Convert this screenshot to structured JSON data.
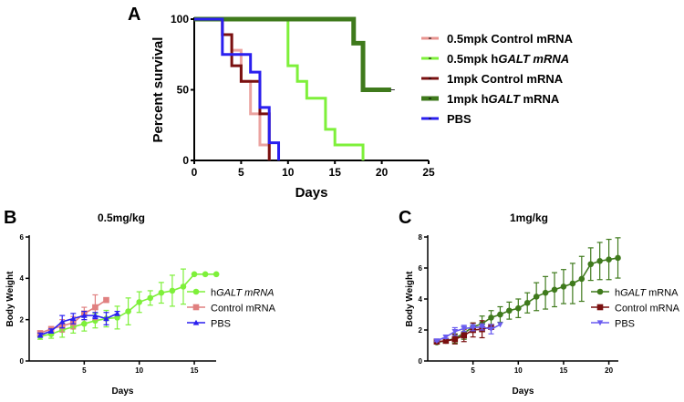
{
  "colors": {
    "pink": "#e8938f",
    "lightgreen": "#7ef03a",
    "darkred": "#7a1010",
    "darkgreen": "#3f7a1c",
    "blue": "#2a1fef",
    "pbs_c": "#6a5cf0"
  },
  "chart_data": [
    {
      "panel": "A",
      "type": "line",
      "subtype": "kaplan-meier",
      "title": "",
      "xlabel": "Days",
      "ylabel": "Percent survival",
      "xlim": [
        0,
        25
      ],
      "ylim": [
        0,
        100
      ],
      "xticks": [
        0,
        5,
        10,
        15,
        20,
        25
      ],
      "yticks": [
        0,
        50,
        100
      ],
      "legend_position": "right",
      "series": [
        {
          "name": "0.5mpk Control mRNA",
          "italic": "",
          "color": "#e8938f",
          "steps": [
            [
              0,
              100
            ],
            [
              3,
              89
            ],
            [
              4,
              78
            ],
            [
              5,
              56
            ],
            [
              6,
              33
            ],
            [
              7,
              11
            ],
            [
              8,
              0
            ]
          ],
          "end": 8
        },
        {
          "name": "0.5mpk hGALT mRNA",
          "italic": "GALT mRNA",
          "color": "#7ef03a",
          "steps": [
            [
              0,
              100
            ],
            [
              10,
              67
            ],
            [
              11,
              56
            ],
            [
              12,
              44
            ],
            [
              14,
              22
            ],
            [
              15,
              11
            ],
            [
              18,
              0
            ]
          ],
          "end": 18
        },
        {
          "name": "1mpk Control mRNA",
          "italic": "",
          "color": "#7a1010",
          "steps": [
            [
              0,
              100
            ],
            [
              3,
              89
            ],
            [
              4,
              67
            ],
            [
              5,
              56
            ],
            [
              7,
              33
            ],
            [
              8,
              0
            ]
          ],
          "end": 8
        },
        {
          "name": "1mpk hGALT mRNA",
          "italic": "GALT",
          "color": "#3f7a1c",
          "steps": [
            [
              0,
              100
            ],
            [
              17,
              83
            ],
            [
              18,
              50
            ]
          ],
          "end": 21
        },
        {
          "name": "PBS",
          "italic": "",
          "color": "#2a1fef",
          "steps": [
            [
              0,
              100
            ],
            [
              3,
              75
            ],
            [
              6,
              62.5
            ],
            [
              7,
              37.5
            ],
            [
              8,
              12.5
            ],
            [
              9,
              0
            ]
          ],
          "end": 9
        }
      ]
    },
    {
      "panel": "B",
      "type": "line",
      "title": "0.5mg/kg",
      "xlabel": "Days",
      "ylabel": "Body Weight",
      "xlim": [
        0,
        17.5
      ],
      "ylim": [
        0,
        6
      ],
      "xticks": [
        5,
        10,
        15
      ],
      "yticks": [
        0,
        2,
        4,
        6
      ],
      "legend_position": "right",
      "series": [
        {
          "name": "hGALT mRNA",
          "italic": "GALT mRNA",
          "color": "#7ef03a",
          "marker": "circle",
          "x": [
            1,
            2,
            3,
            4,
            5,
            6,
            7,
            8,
            9,
            10,
            11,
            12,
            13,
            14,
            15,
            16,
            17
          ],
          "y": [
            1.2,
            1.3,
            1.5,
            1.65,
            1.8,
            1.95,
            2.05,
            2.1,
            2.4,
            2.85,
            3.05,
            3.3,
            3.4,
            3.6,
            4.2,
            4.2,
            4.2
          ],
          "err": [
            0.15,
            0.2,
            0.35,
            0.3,
            0.35,
            0.35,
            0.4,
            0.55,
            0.65,
            0.5,
            0.35,
            0.5,
            0.75,
            0.85,
            0,
            0,
            0
          ]
        },
        {
          "name": "Control mRNA",
          "italic": "",
          "color": "#e08080",
          "marker": "square",
          "x": [
            1,
            2,
            3,
            4,
            5,
            6,
            7
          ],
          "y": [
            1.35,
            1.55,
            1.7,
            1.85,
            2.3,
            2.6,
            2.95
          ],
          "err": [
            0.05,
            0.1,
            0.3,
            0.3,
            0.3,
            0.6,
            0
          ]
        },
        {
          "name": "PBS",
          "italic": "",
          "color": "#2a1fef",
          "marker": "triangle-up",
          "x": [
            1,
            2,
            3,
            4,
            5,
            6,
            7,
            8
          ],
          "y": [
            1.25,
            1.45,
            1.9,
            2.05,
            2.2,
            2.2,
            2.05,
            2.3
          ],
          "err": [
            0.1,
            0.1,
            0.3,
            0.25,
            0.2,
            0.15,
            0.3,
            0.1
          ]
        }
      ]
    },
    {
      "panel": "C",
      "type": "line",
      "title": "1mg/kg",
      "xlabel": "Days",
      "ylabel": "Body Weight",
      "xlim": [
        0,
        21
      ],
      "ylim": [
        0,
        8
      ],
      "xticks": [
        5,
        10,
        15,
        20
      ],
      "yticks": [
        0,
        2,
        4,
        6,
        8
      ],
      "legend_position": "right",
      "series": [
        {
          "name": "hGALT mRNA",
          "italic": "GALT",
          "color": "#3f7a1c",
          "marker": "circle",
          "x": [
            1,
            2,
            3,
            4,
            5,
            6,
            7,
            8,
            9,
            10,
            11,
            12,
            13,
            14,
            15,
            16,
            17,
            18,
            19,
            20,
            21
          ],
          "y": [
            1.2,
            1.3,
            1.45,
            1.8,
            2.2,
            2.4,
            2.8,
            3.0,
            3.25,
            3.4,
            3.75,
            4.15,
            4.4,
            4.6,
            4.8,
            5.0,
            5.3,
            6.25,
            6.45,
            6.55,
            6.65
          ],
          "err": [
            0.1,
            0.1,
            0.3,
            0.4,
            0.25,
            0.5,
            0.45,
            0.5,
            0.55,
            0.6,
            0.65,
            0.9,
            1.05,
            1.1,
            1.1,
            1.3,
            1.45,
            1.05,
            1.2,
            1.3,
            1.3
          ]
        },
        {
          "name": "Control mRNA",
          "italic": "",
          "color": "#7a1010",
          "marker": "square",
          "x": [
            1,
            2,
            3,
            4,
            5,
            6,
            7
          ],
          "y": [
            1.25,
            1.3,
            1.4,
            1.65,
            2.0,
            2.05,
            2.2
          ],
          "err": [
            0.1,
            0.1,
            0.3,
            0.4,
            0.45,
            0.55,
            0
          ]
        },
        {
          "name": "PBS",
          "italic": "",
          "color": "#6a5cf0",
          "marker": "triangle-down",
          "x": [
            1,
            2,
            3,
            4,
            5,
            6,
            7,
            8
          ],
          "y": [
            1.3,
            1.55,
            1.9,
            2.1,
            2.15,
            2.2,
            2.05,
            2.35
          ],
          "err": [
            0.05,
            0.1,
            0.25,
            0.2,
            0.2,
            0.2,
            0.3,
            0
          ]
        }
      ]
    }
  ]
}
